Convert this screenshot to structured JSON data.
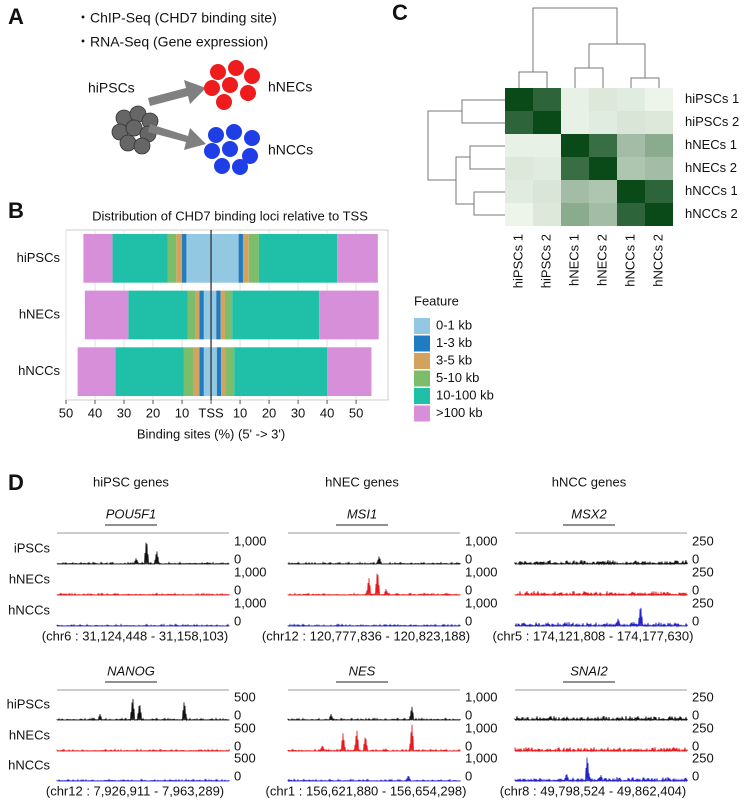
{
  "panel_labels": [
    "A",
    "B",
    "C",
    "D"
  ],
  "panel_a": {
    "bullets": [
      "・ChIP-Seq (CHD7 binding site)",
      "・RNA-Seq (Gene expression)"
    ],
    "source": "hiPSCs",
    "targets": [
      "hNECs",
      "hNCCs"
    ]
  },
  "chart_data": [
    {
      "type": "bar",
      "title": "Distribution of CHD7 binding loci relative to TSS",
      "xlabel": "Binding sites (%) (5' -> 3')",
      "categories": [
        "hiPSCs",
        "hNECs",
        "hNCCs"
      ],
      "legend_title": "Feature",
      "series": [
        {
          "name": "0-1 kb",
          "color": "#93c8e2",
          "upstream": [
            8.5,
            2.5,
            2.5
          ],
          "downstream": [
            9.5,
            1.8,
            2
          ]
        },
        {
          "name": "1-3 kb",
          "color": "#1f7cc0",
          "upstream": [
            1.5,
            1.5,
            1.5
          ],
          "downstream": [
            1.5,
            1.5,
            1.5
          ]
        },
        {
          "name": "3-5 kb",
          "color": "#d3a25e",
          "upstream": [
            2,
            1.5,
            2
          ],
          "downstream": [
            2,
            1.5,
            1.5
          ]
        },
        {
          "name": "5-10 kb",
          "color": "#7cbd6c",
          "upstream": [
            3,
            2.5,
            3.5
          ],
          "downstream": [
            3.5,
            2.5,
            3
          ]
        },
        {
          "name": "10-100 kb",
          "color": "#1fbfa8",
          "upstream": [
            19,
            20.5,
            23.5
          ],
          "downstream": [
            27,
            30,
            32
          ]
        },
        {
          "name": ">100 kb",
          "color": "#d68fd8",
          "upstream": [
            10,
            15,
            13
          ],
          "downstream": [
            14,
            20.5,
            15.3
          ]
        }
      ],
      "xlim": [
        -50,
        61
      ],
      "xticks": [
        {
          "value": -50,
          "label": "50"
        },
        {
          "value": -40,
          "label": "40"
        },
        {
          "value": -30,
          "label": "30"
        },
        {
          "value": -20,
          "label": "20"
        },
        {
          "value": -10,
          "label": "10"
        },
        {
          "value": 0,
          "label": "TSS"
        },
        10,
        20,
        30,
        40,
        50
      ],
      "grid": true
    },
    {
      "type": "heatmap",
      "row_labels": [
        "hiPSCs 1",
        "hiPSCs 2",
        "hNECs 1",
        "hNECs 2",
        "hNCCs 1",
        "hNCCs 2"
      ],
      "col_labels": [
        "hiPSCs 1",
        "hiPSCs 2",
        "hNECs 1",
        "hNECs 2",
        "hNCCs 1",
        "hNCCs 2"
      ],
      "values": [
        [
          1,
          0.85,
          0.05,
          0.1,
          0.08,
          0.03
        ],
        [
          0.85,
          1,
          0.05,
          0.08,
          0.12,
          0.1
        ],
        [
          0.05,
          0.05,
          1,
          0.8,
          0.35,
          0.45
        ],
        [
          0.1,
          0.08,
          0.8,
          1,
          0.3,
          0.35
        ],
        [
          0.08,
          0.12,
          0.35,
          0.3,
          1,
          0.85
        ],
        [
          0.03,
          0.1,
          0.45,
          0.35,
          0.85,
          1
        ]
      ],
      "color_low": "#f4faf1",
      "color_high": "#0a4a18"
    }
  ],
  "panel_d": {
    "columns": [
      {
        "header": "hiPSC genes",
        "loci": [
          {
            "gene": "POU5F1",
            "scale_max": "1,000",
            "scale_min": "0",
            "coordinates": "(chr6 : 31,124,448 - 31,158,103)"
          },
          {
            "gene": "NANOG",
            "scale_max": "500",
            "scale_min": "0",
            "coordinates": "(chr12 : 7,926,911 - 7,963,289)"
          }
        ]
      },
      {
        "header": "hNEC genes",
        "loci": [
          {
            "gene": "MSI1",
            "scale_max": "1,000",
            "scale_min": "0",
            "coordinates": "(chr12 : 120,777,836 - 120,823,188)"
          },
          {
            "gene": "NES",
            "scale_max": "1,000",
            "scale_min": "0",
            "coordinates": "(chr1 : 156,621,880 - 156,654,298)"
          }
        ]
      },
      {
        "header": "hNCC genes",
        "loci": [
          {
            "gene": "MSX2",
            "scale_max": "250",
            "scale_min": "0",
            "coordinates": "(chr5 : 174,121,808 - 174,177,630)"
          },
          {
            "gene": "SNAI2",
            "scale_max": "250",
            "scale_min": "0",
            "coordinates": "(chr8 : 49,798,524 - 49,862,404)"
          }
        ]
      }
    ],
    "track_rows": [
      [
        "iPSCs",
        "hNECs",
        "hNCCs"
      ],
      [
        "hiPSCs",
        "hNECs",
        "hNCCs"
      ]
    ]
  }
}
